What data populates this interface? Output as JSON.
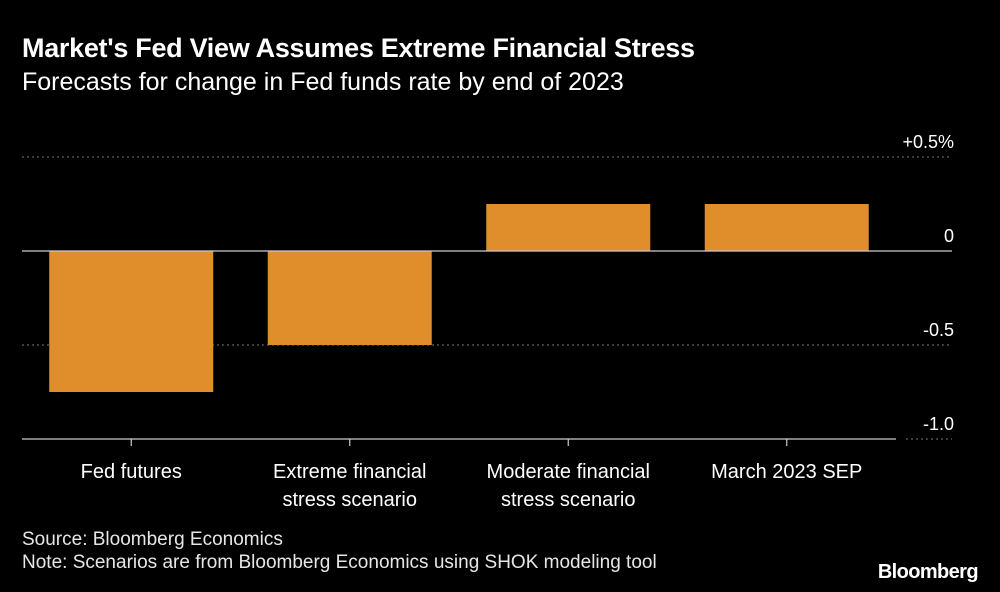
{
  "title": "Market's Fed View Assumes Extreme Financial Stress",
  "subtitle": "Forecasts for change in Fed funds rate by end of 2023",
  "source": "Source: Bloomberg Economics",
  "note": "Note: Scenarios are from Bloomberg Economics using SHOK modeling tool",
  "brand": "Bloomberg",
  "colors": {
    "bar": "#e08e2b",
    "background": "#000000",
    "grid": "#777777",
    "text": "#ffffff"
  },
  "chart_data": {
    "type": "bar",
    "title": "Market's Fed View Assumes Extreme Financial Stress",
    "subtitle": "Forecasts for change in Fed funds rate by end of 2023",
    "categories": [
      [
        "Fed futures"
      ],
      [
        "Extreme financial",
        "stress scenario"
      ],
      [
        "Moderate financial",
        "stress scenario"
      ],
      [
        "March 2023 SEP"
      ]
    ],
    "values": [
      -0.75,
      -0.5,
      0.25,
      0.25
    ],
    "ylim": [
      -1.0,
      0.5
    ],
    "yticks": [
      0.5,
      0,
      -0.5,
      -1.0
    ],
    "ytick_labels": [
      "+0.5%",
      "0",
      "-0.5",
      "-1.0"
    ],
    "xlabel": "",
    "ylabel": "",
    "grid": true,
    "legend": "none"
  }
}
